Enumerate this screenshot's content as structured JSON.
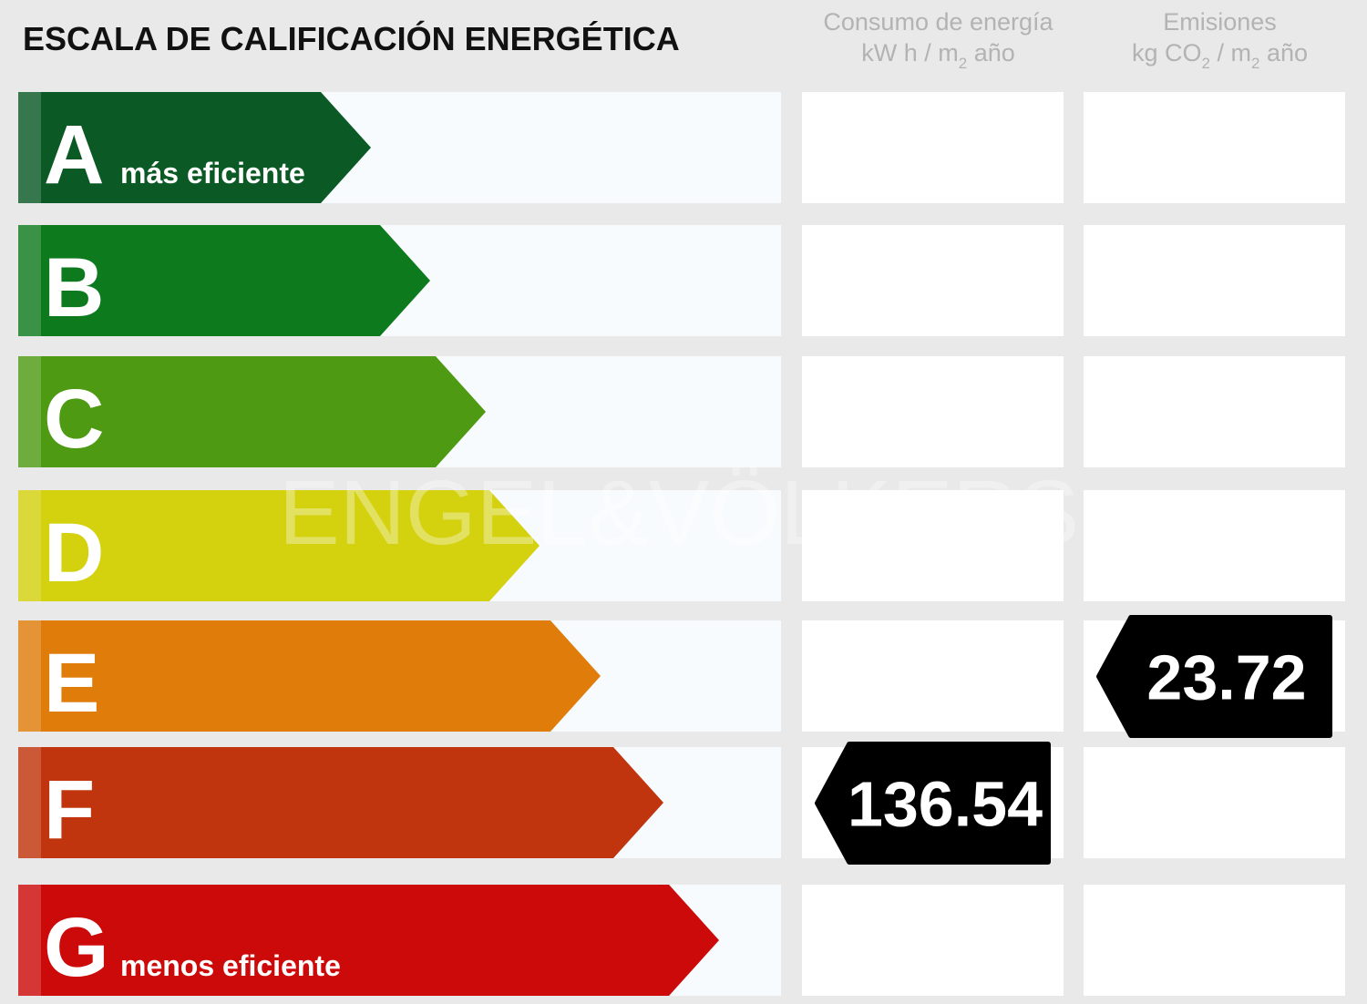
{
  "title": "ESCALA DE CALIFICACIÓN ENERGÉTICA",
  "watermark": "ENGEL&VÖLKERS",
  "columns": [
    {
      "name": "Consumo de energía",
      "unit": [
        {
          "text": "kW h / m"
        },
        {
          "text": "2",
          "sub": true
        },
        {
          "text": " año"
        }
      ]
    },
    {
      "name": "Emisiones",
      "unit": [
        {
          "text": "kg CO"
        },
        {
          "text": "2",
          "sub": true
        },
        {
          "text": " / m"
        },
        {
          "text": "2",
          "sub": true
        },
        {
          "text": " año"
        }
      ]
    }
  ],
  "rows": [
    {
      "letter": "A",
      "label": "más eficiente",
      "color": "#0b5a26"
    },
    {
      "letter": "B",
      "color": "#0e7a1e"
    },
    {
      "letter": "C",
      "color": "#4e9a13"
    },
    {
      "letter": "D",
      "color": "#d4d10f"
    },
    {
      "letter": "E",
      "color": "#df7c0a",
      "emissions": 23.72
    },
    {
      "letter": "F",
      "color": "#c0350d",
      "consumption": 136.54
    },
    {
      "letter": "G",
      "label": "menos eficiente",
      "color": "#cc0a0a"
    }
  ]
}
